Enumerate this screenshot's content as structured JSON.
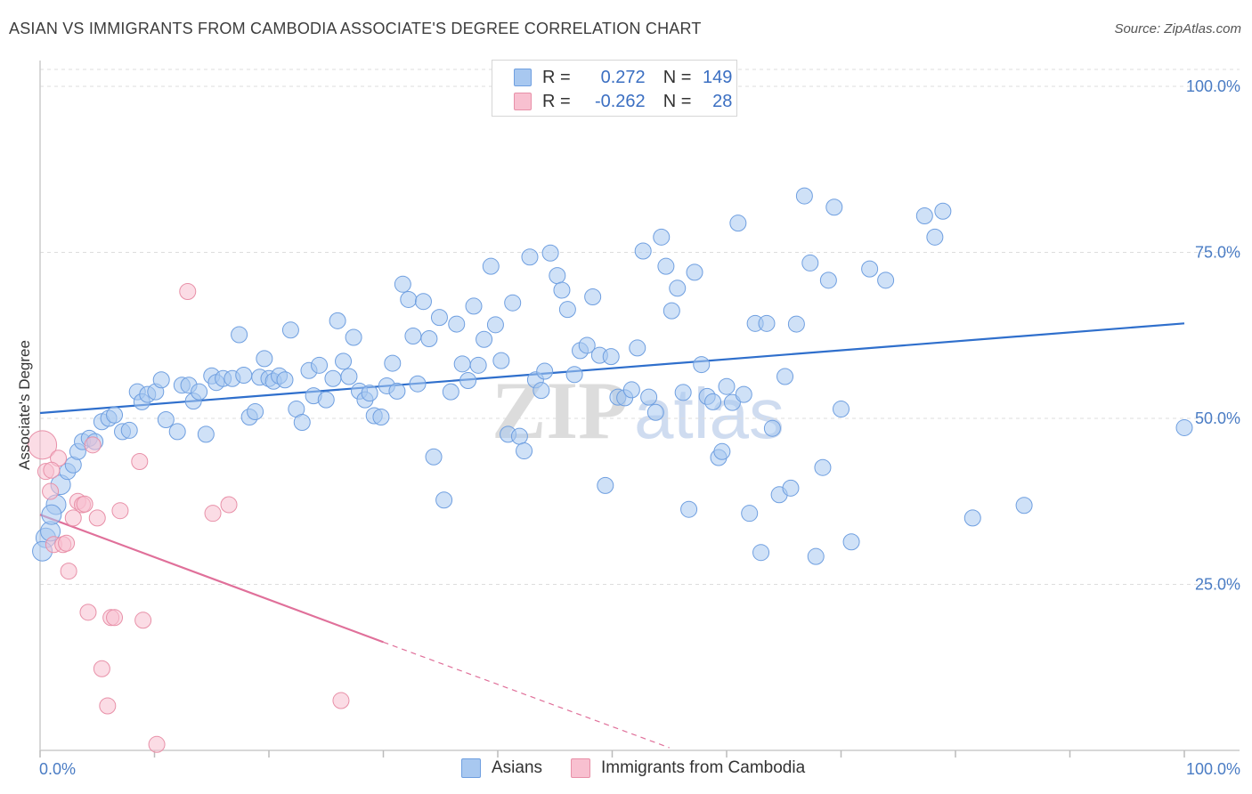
{
  "title": "ASIAN VS IMMIGRANTS FROM CAMBODIA ASSOCIATE'S DEGREE CORRELATION CHART",
  "source": "Source: ZipAtlas.com",
  "watermark": {
    "zip": "ZIP",
    "atlas": "atlas"
  },
  "legend": {
    "rows": [
      {
        "r_label": "R =",
        "r_value": "0.272",
        "n_label": "N =",
        "n_value": "149",
        "color": "#a8c8f0",
        "border": "#6f9fe0"
      },
      {
        "r_label": "R =",
        "r_value": "-0.262",
        "n_label": "N =",
        "n_value": "28",
        "color": "#f8c0d0",
        "border": "#e890a8"
      }
    ]
  },
  "bottom_legend": [
    {
      "label": "Asians",
      "color": "#a8c8f0",
      "border": "#6f9fe0"
    },
    {
      "label": "Immigrants from Cambodia",
      "color": "#f8c0d0",
      "border": "#e890a8"
    }
  ],
  "chart_data": {
    "type": "scatter",
    "title": "ASIAN VS IMMIGRANTS FROM CAMBODIA ASSOCIATE'S DEGREE CORRELATION CHART",
    "xlabel": "",
    "ylabel": "Associate's Degree",
    "xlim": [
      0,
      100
    ],
    "ylim": [
      0,
      100
    ],
    "x_ticks": [
      "0.0%",
      "100.0%"
    ],
    "y_ticks": [
      {
        "value": 25,
        "label": "25.0%"
      },
      {
        "value": 50,
        "label": "50.0%"
      },
      {
        "value": 75,
        "label": "75.0%"
      },
      {
        "value": 100,
        "label": "100.0%"
      }
    ],
    "grid": "horizontal-dashed",
    "legend_position": "top-center",
    "series": [
      {
        "name": "Asians",
        "color": "#a8c8f0",
        "stroke": "#6f9fe0",
        "trend": {
          "x0": 0,
          "y0": 50.8,
          "x1": 100,
          "y1": 64.3,
          "color": "#2f6fcc"
        },
        "points": [
          [
            0.5,
            32
          ],
          [
            0.9,
            33
          ],
          [
            1.4,
            37
          ],
          [
            1.8,
            40
          ],
          [
            2.4,
            42
          ],
          [
            2.9,
            43
          ],
          [
            3.3,
            45
          ],
          [
            3.7,
            46.5
          ],
          [
            4.3,
            47
          ],
          [
            4.8,
            46.5
          ],
          [
            5.4,
            49.5
          ],
          [
            6.0,
            50
          ],
          [
            6.5,
            50.5
          ],
          [
            7.2,
            48
          ],
          [
            7.8,
            48.2
          ],
          [
            8.5,
            54
          ],
          [
            8.9,
            52.5
          ],
          [
            9.4,
            53.6
          ],
          [
            10.1,
            54
          ],
          [
            10.6,
            55.8
          ],
          [
            11.0,
            49.8
          ],
          [
            12.0,
            48
          ],
          [
            12.4,
            55
          ],
          [
            13.0,
            55
          ],
          [
            13.4,
            52.6
          ],
          [
            13.9,
            54
          ],
          [
            14.5,
            47.6
          ],
          [
            15.0,
            56.4
          ],
          [
            15.4,
            55.4
          ],
          [
            16.0,
            56
          ],
          [
            16.8,
            56
          ],
          [
            17.4,
            62.6
          ],
          [
            17.8,
            56.5
          ],
          [
            18.3,
            50.2
          ],
          [
            18.8,
            51
          ],
          [
            19.2,
            56.2
          ],
          [
            19.6,
            59
          ],
          [
            20.0,
            56
          ],
          [
            20.4,
            55.6
          ],
          [
            20.9,
            56.4
          ],
          [
            21.4,
            55.8
          ],
          [
            21.9,
            63.3
          ],
          [
            22.4,
            51.4
          ],
          [
            22.9,
            49.4
          ],
          [
            23.5,
            57.2
          ],
          [
            23.9,
            53.4
          ],
          [
            24.4,
            58
          ],
          [
            25.0,
            52.8
          ],
          [
            25.6,
            56
          ],
          [
            26.0,
            64.7
          ],
          [
            26.5,
            58.6
          ],
          [
            27.0,
            56.3
          ],
          [
            27.4,
            62.2
          ],
          [
            27.9,
            54.1
          ],
          [
            28.4,
            52.8
          ],
          [
            28.8,
            53.8
          ],
          [
            29.2,
            50.4
          ],
          [
            29.8,
            50.2
          ],
          [
            30.3,
            54.9
          ],
          [
            30.8,
            58.3
          ],
          [
            31.2,
            54.1
          ],
          [
            31.7,
            70.2
          ],
          [
            32.2,
            67.9
          ],
          [
            32.6,
            62.4
          ],
          [
            33.0,
            55.2
          ],
          [
            33.5,
            67.6
          ],
          [
            34.0,
            62
          ],
          [
            34.4,
            44.2
          ],
          [
            34.9,
            65.2
          ],
          [
            35.3,
            37.7
          ],
          [
            35.9,
            54
          ],
          [
            36.4,
            64.2
          ],
          [
            36.9,
            58.2
          ],
          [
            37.4,
            55.7
          ],
          [
            37.9,
            66.9
          ],
          [
            38.3,
            58
          ],
          [
            38.8,
            61.9
          ],
          [
            39.4,
            72.9
          ],
          [
            39.8,
            64.1
          ],
          [
            40.3,
            58.7
          ],
          [
            40.9,
            47.6
          ],
          [
            41.3,
            67.4
          ],
          [
            41.9,
            47.3
          ],
          [
            42.3,
            45.1
          ],
          [
            42.8,
            74.3
          ],
          [
            43.3,
            55.8
          ],
          [
            43.8,
            54.2
          ],
          [
            44.1,
            57.1
          ],
          [
            44.6,
            74.9
          ],
          [
            45.2,
            71.5
          ],
          [
            45.6,
            69.3
          ],
          [
            46.1,
            66.4
          ],
          [
            46.7,
            56.6
          ],
          [
            47.2,
            60.2
          ],
          [
            47.8,
            61.0
          ],
          [
            48.3,
            68.3
          ],
          [
            48.9,
            59.5
          ],
          [
            49.4,
            39.9
          ],
          [
            49.9,
            59.3
          ],
          [
            50.5,
            53.2
          ],
          [
            51.1,
            53.1
          ],
          [
            51.7,
            54.3
          ],
          [
            52.2,
            60.6
          ],
          [
            52.7,
            75.2
          ],
          [
            53.2,
            53.2
          ],
          [
            53.8,
            50.9
          ],
          [
            54.3,
            77.3
          ],
          [
            54.7,
            72.9
          ],
          [
            55.2,
            66.2
          ],
          [
            55.7,
            69.6
          ],
          [
            56.2,
            53.9
          ],
          [
            56.7,
            36.3
          ],
          [
            57.2,
            72.0
          ],
          [
            57.8,
            58.1
          ],
          [
            58.3,
            53.3
          ],
          [
            58.8,
            52.5
          ],
          [
            59.3,
            44.1
          ],
          [
            59.6,
            45
          ],
          [
            60.0,
            54.8
          ],
          [
            60.5,
            52.4
          ],
          [
            61.0,
            79.4
          ],
          [
            61.5,
            53.6
          ],
          [
            62.0,
            35.7
          ],
          [
            62.5,
            64.3
          ],
          [
            63.0,
            29.8
          ],
          [
            63.5,
            64.3
          ],
          [
            64.0,
            48.5
          ],
          [
            64.6,
            38.5
          ],
          [
            65.1,
            56.3
          ],
          [
            65.6,
            39.5
          ],
          [
            66.1,
            64.2
          ],
          [
            66.8,
            83.5
          ],
          [
            67.3,
            73.4
          ],
          [
            67.8,
            29.2
          ],
          [
            68.4,
            42.6
          ],
          [
            68.9,
            70.8
          ],
          [
            69.4,
            81.8
          ],
          [
            70.0,
            51.4
          ],
          [
            70.9,
            31.4
          ],
          [
            72.5,
            72.5
          ],
          [
            73.9,
            70.8
          ],
          [
            77.3,
            80.5
          ],
          [
            78.2,
            77.3
          ],
          [
            78.9,
            81.2
          ],
          [
            81.5,
            35.0
          ],
          [
            86.0,
            36.9
          ],
          [
            100.0,
            48.6
          ],
          [
            0.2,
            30.0
          ],
          [
            1.0,
            35.5
          ]
        ]
      },
      {
        "name": "Immigrants from Cambodia",
        "color": "#f8c0d0",
        "stroke": "#e890a8",
        "trend": {
          "x0": 0,
          "y0": 35.5,
          "x1": 30,
          "y1": 16.3,
          "dash_to_x": 55,
          "dash_to_y": 0.4,
          "color": "#e0709a"
        },
        "points": [
          [
            0.2,
            46
          ],
          [
            0.5,
            42
          ],
          [
            0.9,
            39
          ],
          [
            1.2,
            31
          ],
          [
            1.6,
            44
          ],
          [
            2.0,
            31
          ],
          [
            2.5,
            27
          ],
          [
            2.9,
            35
          ],
          [
            3.3,
            37.5
          ],
          [
            3.7,
            37
          ],
          [
            4.2,
            20.8
          ],
          [
            4.6,
            46
          ],
          [
            5.0,
            35
          ],
          [
            5.4,
            12.3
          ],
          [
            5.9,
            6.7
          ],
          [
            6.2,
            20
          ],
          [
            6.5,
            20
          ],
          [
            7.0,
            36.1
          ],
          [
            8.7,
            43.5
          ],
          [
            9.0,
            19.6
          ],
          [
            10.2,
            0.9
          ],
          [
            12.9,
            69.1
          ],
          [
            15.1,
            35.7
          ],
          [
            16.5,
            37.0
          ],
          [
            26.3,
            7.5
          ],
          [
            1.0,
            42.2
          ],
          [
            3.9,
            37.1
          ],
          [
            2.3,
            31.2
          ]
        ]
      }
    ]
  }
}
